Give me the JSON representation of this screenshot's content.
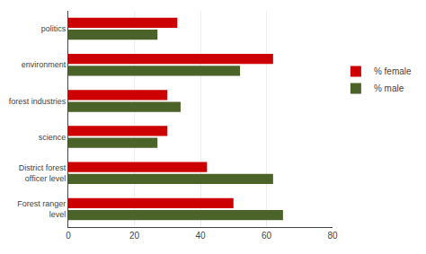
{
  "chart_data": {
    "type": "bar",
    "orientation": "horizontal",
    "categories": [
      "Forest ranger\nlevel",
      "District forest\nofficer level",
      "science",
      "forest industries",
      "environment",
      "politics"
    ],
    "series": [
      {
        "name": "% female",
        "color": "#CC0000",
        "values": [
          50,
          42,
          30,
          30,
          62,
          33
        ]
      },
      {
        "name": "% male",
        "color": "#4B6228",
        "values": [
          65,
          62,
          27,
          34,
          52,
          27
        ]
      }
    ],
    "xlim": [
      0,
      80
    ],
    "xticks": [
      0,
      20,
      40,
      60,
      80
    ],
    "grid": true,
    "legend": "right"
  }
}
